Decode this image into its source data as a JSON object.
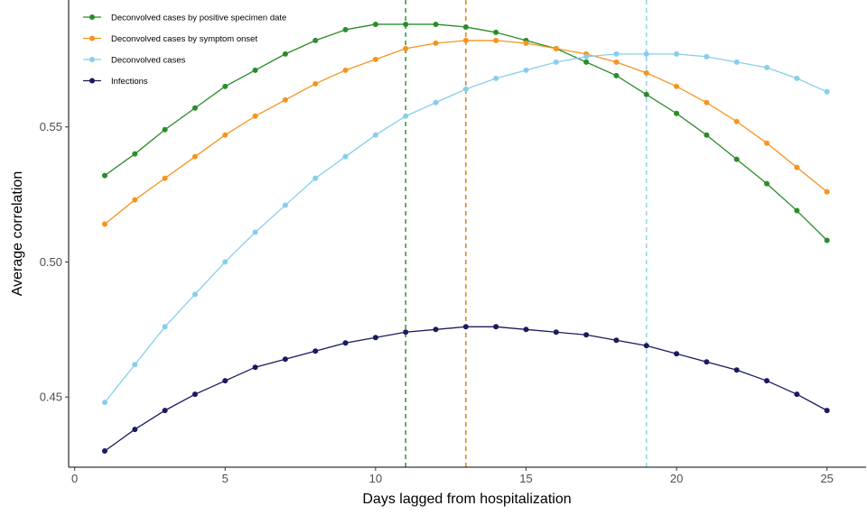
{
  "chart_data": {
    "type": "line",
    "xlabel": "Days lagged from hospitalization",
    "ylabel": "Average correlation",
    "xlim": [
      -0.2,
      26.3
    ],
    "ylim": [
      0.424,
      0.597
    ],
    "x_ticks": [
      0,
      5,
      10,
      15,
      20,
      25
    ],
    "y_ticks": [
      0.45,
      0.5,
      0.55
    ],
    "x_tick_labels": [
      "0",
      "5",
      "10",
      "15",
      "20",
      "25"
    ],
    "y_tick_labels": [
      "0.45",
      "0.50",
      "0.55"
    ],
    "grid": false,
    "legend_position": "top-left",
    "x": [
      1,
      2,
      3,
      4,
      5,
      6,
      7,
      8,
      9,
      10,
      11,
      12,
      13,
      14,
      15,
      16,
      17,
      18,
      19,
      20,
      21,
      22,
      23,
      24,
      25
    ],
    "series": [
      {
        "name": "Deconvolved cases by positive specimen date",
        "color": "#2a8c2a",
        "values": [
          0.532,
          0.54,
          0.549,
          0.557,
          0.565,
          0.571,
          0.577,
          0.582,
          0.586,
          0.588,
          0.588,
          0.588,
          0.587,
          0.585,
          0.582,
          0.579,
          0.574,
          0.569,
          0.562,
          0.555,
          0.547,
          0.538,
          0.529,
          0.519,
          0.508
        ]
      },
      {
        "name": "Deconvolved cases by symptom onset",
        "color": "#f7941d",
        "values": [
          0.514,
          0.523,
          0.531,
          0.539,
          0.547,
          0.554,
          0.56,
          0.566,
          0.571,
          0.575,
          0.579,
          0.581,
          0.582,
          0.582,
          0.581,
          0.579,
          0.577,
          0.574,
          0.57,
          0.565,
          0.559,
          0.552,
          0.544,
          0.535,
          0.526
        ]
      },
      {
        "name": "Deconvolved cases",
        "color": "#87ceeb",
        "values": [
          0.448,
          0.462,
          0.476,
          0.488,
          0.5,
          0.511,
          0.521,
          0.531,
          0.539,
          0.547,
          0.554,
          0.559,
          0.564,
          0.568,
          0.571,
          0.574,
          0.576,
          0.577,
          0.577,
          0.577,
          0.576,
          0.574,
          0.572,
          0.568,
          0.563
        ]
      },
      {
        "name": "Infections",
        "color": "#1a1a5e",
        "values": [
          0.43,
          0.438,
          0.445,
          0.451,
          0.456,
          0.461,
          0.464,
          0.467,
          0.47,
          0.472,
          0.474,
          0.475,
          0.476,
          0.476,
          0.475,
          0.474,
          0.473,
          0.471,
          0.469,
          0.466,
          0.463,
          0.46,
          0.456,
          0.451,
          0.445
        ]
      }
    ],
    "vlines": [
      {
        "x": 11,
        "color": "#2a8c2a",
        "style": "dashed"
      },
      {
        "x": 13,
        "color": "#e07b00",
        "style": "dashed"
      },
      {
        "x": 19,
        "color": "#87ceeb",
        "style": "dashed"
      }
    ]
  }
}
